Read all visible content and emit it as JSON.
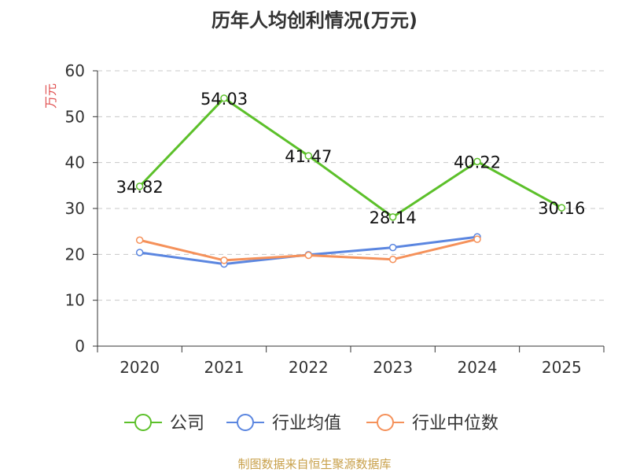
{
  "chart_data": {
    "type": "line",
    "title": "历年人均创利情况(万元)",
    "ylabel": "万元",
    "categories": [
      "2020",
      "2021",
      "2022",
      "2023",
      "2024",
      "2025"
    ],
    "ylim": [
      0,
      60
    ],
    "yticks": [
      0,
      10,
      20,
      30,
      40,
      50,
      60
    ],
    "grid": true,
    "legend_position": "bottom",
    "series": [
      {
        "name": "公司",
        "color": "#5cc02a",
        "values": [
          34.82,
          54.03,
          41.47,
          28.14,
          40.22,
          30.16
        ],
        "labels": [
          "34.82",
          "54.03",
          "41.47",
          "28.14",
          "40.22",
          "30.16"
        ]
      },
      {
        "name": "行业均值",
        "color": "#5b86e0",
        "values": [
          20.4,
          17.9,
          19.9,
          21.5,
          23.8,
          null
        ]
      },
      {
        "name": "行业中位数",
        "color": "#f5915a",
        "values": [
          23.1,
          18.7,
          19.8,
          18.9,
          23.3,
          null
        ]
      }
    ]
  },
  "footer": {
    "source": "制图数据来自恒生聚源数据库"
  },
  "colors": {
    "axis_label": "#e05050",
    "source": "#c8a04a"
  }
}
